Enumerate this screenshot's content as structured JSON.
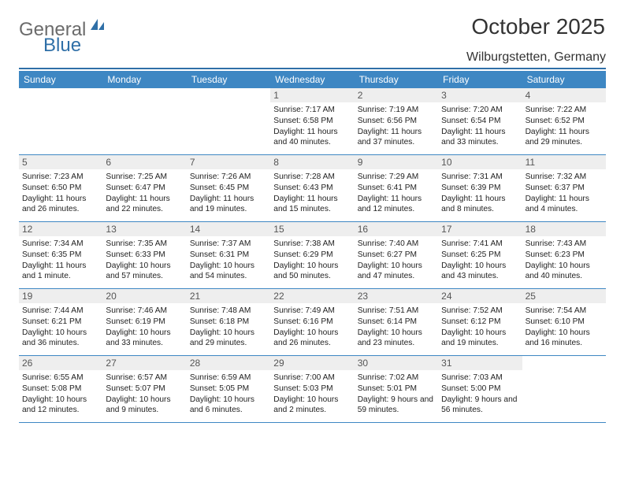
{
  "brand": {
    "part1": "General",
    "part2": "Blue"
  },
  "title": "October 2025",
  "location": "Wilburgstetten, Germany",
  "colors": {
    "header_bg": "#3e87c3",
    "header_text": "#ffffff",
    "daynum_bg": "#eeeeee",
    "rule": "#2f6fa7",
    "text": "#222222"
  },
  "day_names": [
    "Sunday",
    "Monday",
    "Tuesday",
    "Wednesday",
    "Thursday",
    "Friday",
    "Saturday"
  ],
  "weeks": [
    [
      null,
      null,
      null,
      {
        "n": "1",
        "r": "7:17 AM",
        "s": "6:58 PM",
        "d": "11 hours and 40 minutes."
      },
      {
        "n": "2",
        "r": "7:19 AM",
        "s": "6:56 PM",
        "d": "11 hours and 37 minutes."
      },
      {
        "n": "3",
        "r": "7:20 AM",
        "s": "6:54 PM",
        "d": "11 hours and 33 minutes."
      },
      {
        "n": "4",
        "r": "7:22 AM",
        "s": "6:52 PM",
        "d": "11 hours and 29 minutes."
      }
    ],
    [
      {
        "n": "5",
        "r": "7:23 AM",
        "s": "6:50 PM",
        "d": "11 hours and 26 minutes."
      },
      {
        "n": "6",
        "r": "7:25 AM",
        "s": "6:47 PM",
        "d": "11 hours and 22 minutes."
      },
      {
        "n": "7",
        "r": "7:26 AM",
        "s": "6:45 PM",
        "d": "11 hours and 19 minutes."
      },
      {
        "n": "8",
        "r": "7:28 AM",
        "s": "6:43 PM",
        "d": "11 hours and 15 minutes."
      },
      {
        "n": "9",
        "r": "7:29 AM",
        "s": "6:41 PM",
        "d": "11 hours and 12 minutes."
      },
      {
        "n": "10",
        "r": "7:31 AM",
        "s": "6:39 PM",
        "d": "11 hours and 8 minutes."
      },
      {
        "n": "11",
        "r": "7:32 AM",
        "s": "6:37 PM",
        "d": "11 hours and 4 minutes."
      }
    ],
    [
      {
        "n": "12",
        "r": "7:34 AM",
        "s": "6:35 PM",
        "d": "11 hours and 1 minute."
      },
      {
        "n": "13",
        "r": "7:35 AM",
        "s": "6:33 PM",
        "d": "10 hours and 57 minutes."
      },
      {
        "n": "14",
        "r": "7:37 AM",
        "s": "6:31 PM",
        "d": "10 hours and 54 minutes."
      },
      {
        "n": "15",
        "r": "7:38 AM",
        "s": "6:29 PM",
        "d": "10 hours and 50 minutes."
      },
      {
        "n": "16",
        "r": "7:40 AM",
        "s": "6:27 PM",
        "d": "10 hours and 47 minutes."
      },
      {
        "n": "17",
        "r": "7:41 AM",
        "s": "6:25 PM",
        "d": "10 hours and 43 minutes."
      },
      {
        "n": "18",
        "r": "7:43 AM",
        "s": "6:23 PM",
        "d": "10 hours and 40 minutes."
      }
    ],
    [
      {
        "n": "19",
        "r": "7:44 AM",
        "s": "6:21 PM",
        "d": "10 hours and 36 minutes."
      },
      {
        "n": "20",
        "r": "7:46 AM",
        "s": "6:19 PM",
        "d": "10 hours and 33 minutes."
      },
      {
        "n": "21",
        "r": "7:48 AM",
        "s": "6:18 PM",
        "d": "10 hours and 29 minutes."
      },
      {
        "n": "22",
        "r": "7:49 AM",
        "s": "6:16 PM",
        "d": "10 hours and 26 minutes."
      },
      {
        "n": "23",
        "r": "7:51 AM",
        "s": "6:14 PM",
        "d": "10 hours and 23 minutes."
      },
      {
        "n": "24",
        "r": "7:52 AM",
        "s": "6:12 PM",
        "d": "10 hours and 19 minutes."
      },
      {
        "n": "25",
        "r": "7:54 AM",
        "s": "6:10 PM",
        "d": "10 hours and 16 minutes."
      }
    ],
    [
      {
        "n": "26",
        "r": "6:55 AM",
        "s": "5:08 PM",
        "d": "10 hours and 12 minutes."
      },
      {
        "n": "27",
        "r": "6:57 AM",
        "s": "5:07 PM",
        "d": "10 hours and 9 minutes."
      },
      {
        "n": "28",
        "r": "6:59 AM",
        "s": "5:05 PM",
        "d": "10 hours and 6 minutes."
      },
      {
        "n": "29",
        "r": "7:00 AM",
        "s": "5:03 PM",
        "d": "10 hours and 2 minutes."
      },
      {
        "n": "30",
        "r": "7:02 AM",
        "s": "5:01 PM",
        "d": "9 hours and 59 minutes."
      },
      {
        "n": "31",
        "r": "7:03 AM",
        "s": "5:00 PM",
        "d": "9 hours and 56 minutes."
      },
      null
    ]
  ],
  "labels": {
    "sunrise": "Sunrise:",
    "sunset": "Sunset:",
    "daylight": "Daylight:"
  }
}
